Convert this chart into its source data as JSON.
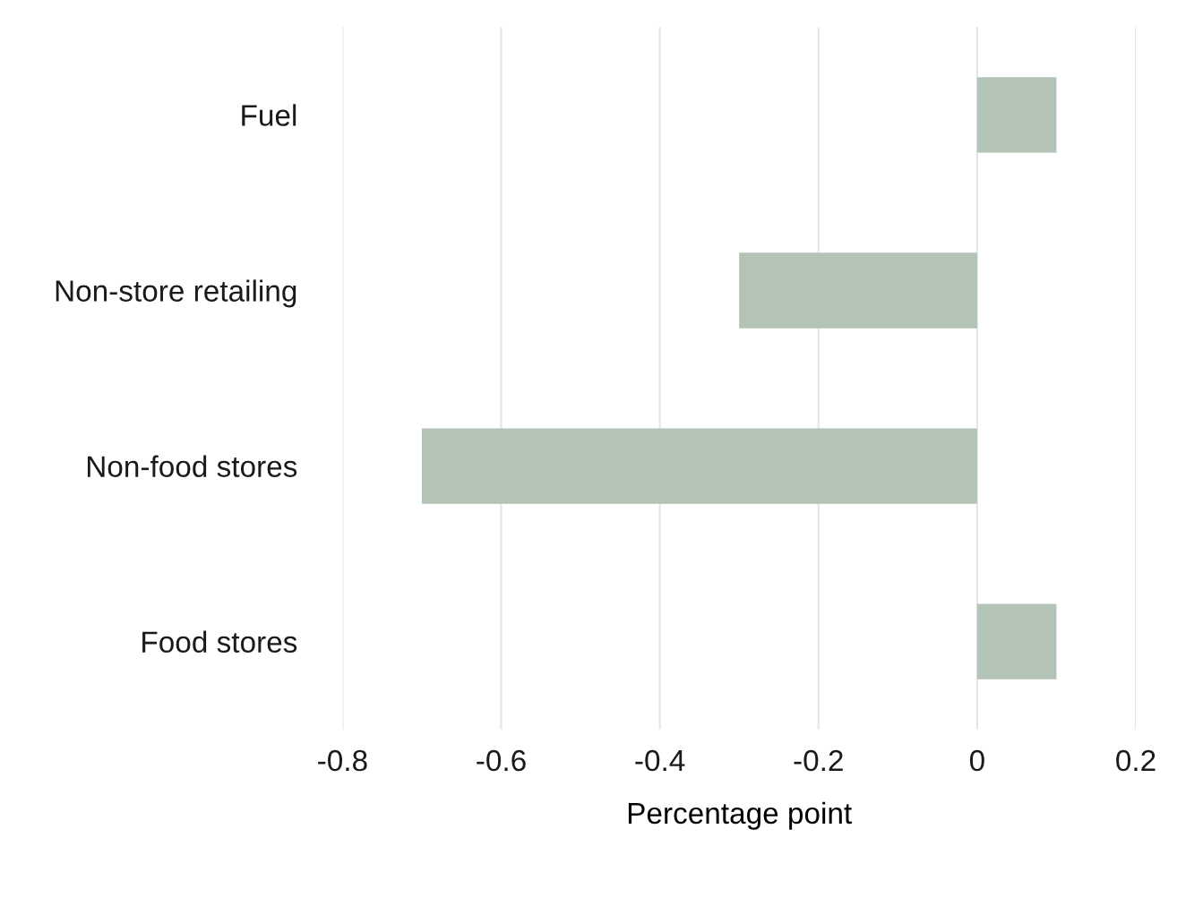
{
  "chart_data": {
    "type": "bar",
    "orientation": "horizontal",
    "xlabel": "Percentage point",
    "categories": [
      "Fuel",
      "Non-store retailing",
      "Non-food stores",
      "Food stores"
    ],
    "values": [
      0.1,
      -0.3,
      -0.7,
      0.1
    ],
    "color": "#b3c3b6",
    "xlim": [
      -0.8,
      0.2
    ],
    "xticks": [
      {
        "value": -0.8,
        "label": "-0.8"
      },
      {
        "value": -0.6,
        "label": "-0.6"
      },
      {
        "value": -0.4,
        "label": "-0.4"
      },
      {
        "value": -0.2,
        "label": "-0.2"
      },
      0,
      0.2
    ],
    "grid": "x"
  }
}
